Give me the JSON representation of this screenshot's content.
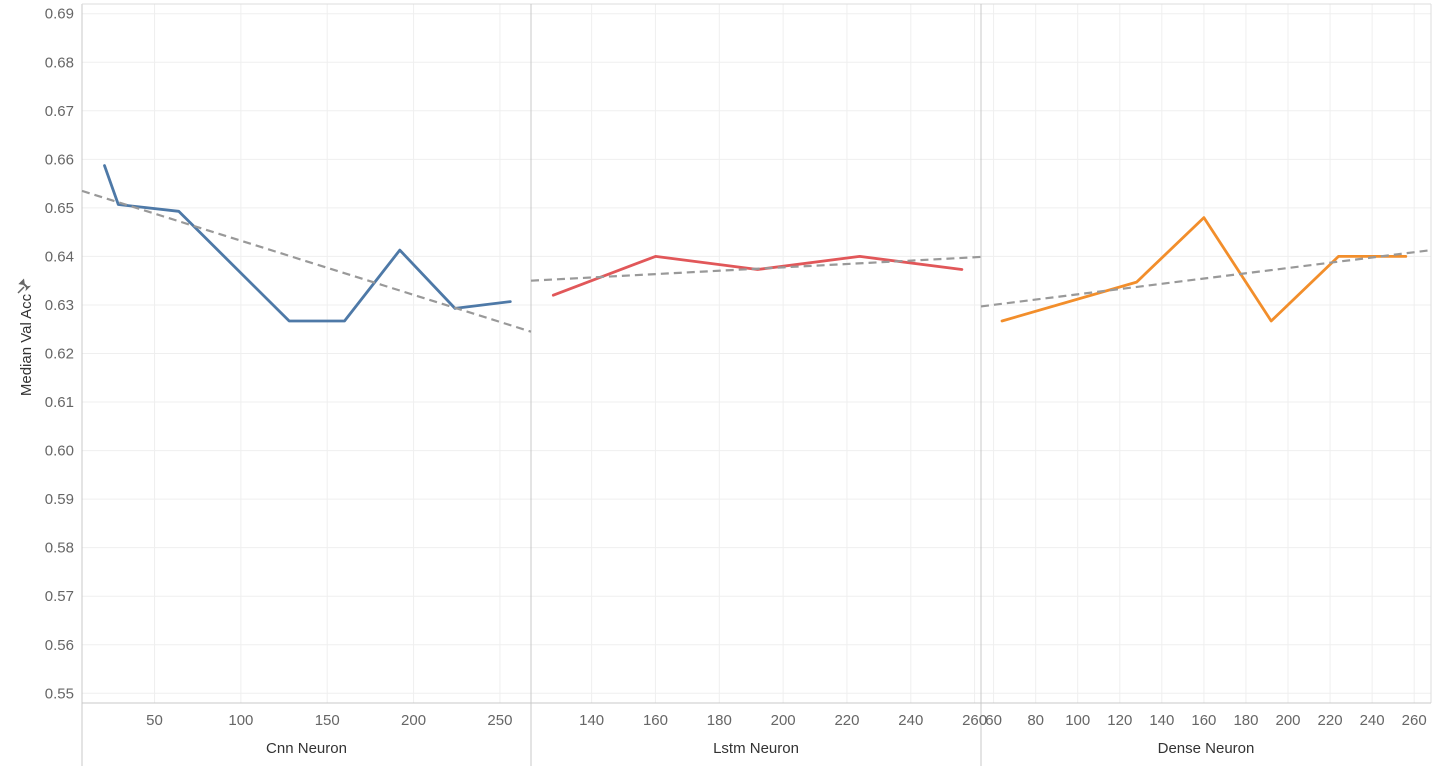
{
  "chart_data": {
    "type": "line",
    "ylabel": "Median Val Acc",
    "ylabel_icon": "pin-icon",
    "y_ticks": [
      "0.55",
      "0.56",
      "0.57",
      "0.58",
      "0.59",
      "0.60",
      "0.61",
      "0.62",
      "0.63",
      "0.64",
      "0.65",
      "0.66",
      "0.67",
      "0.68",
      "0.69"
    ],
    "ylim": [
      0.548,
      0.692
    ],
    "grid": true,
    "trend_line_color": "#999999",
    "panels": [
      {
        "xlabel": "Cnn Neuron",
        "color": "#4e79a7",
        "xlim": [
          8,
          268
        ],
        "x_ticks": [
          "50",
          "100",
          "150",
          "200",
          "250"
        ],
        "x": [
          21,
          29,
          64,
          128,
          160,
          192,
          224,
          256
        ],
        "values": [
          0.6587,
          0.6507,
          0.6493,
          0.6267,
          0.6267,
          0.6413,
          0.6293,
          0.6307
        ],
        "trend": {
          "x": [
            8,
            268
          ],
          "values": [
            0.6535,
            0.6245
          ]
        }
      },
      {
        "xlabel": "Lstm Neuron",
        "color": "#e15759",
        "xlim": [
          121,
          262
        ],
        "x_ticks": [
          "140",
          "160",
          "180",
          "200",
          "220",
          "240",
          "260"
        ],
        "x": [
          128,
          160,
          192,
          224,
          256
        ],
        "values": [
          0.632,
          0.64,
          0.6373,
          0.64,
          0.6373
        ],
        "trend": {
          "x": [
            121,
            262
          ],
          "values": [
            0.635,
            0.6399
          ]
        }
      },
      {
        "xlabel": "Dense Neuron",
        "color": "#f28e2b",
        "xlim": [
          54,
          268
        ],
        "x_ticks": [
          "60",
          "80",
          "100",
          "120",
          "140",
          "160",
          "180",
          "200",
          "220",
          "240",
          "260"
        ],
        "x": [
          64,
          128,
          160,
          192,
          224,
          256
        ],
        "values": [
          0.6267,
          0.6347,
          0.648,
          0.6267,
          0.64,
          0.64
        ],
        "trend": {
          "x": [
            54,
            268
          ],
          "values": [
            0.6297,
            0.6413
          ]
        }
      }
    ]
  }
}
